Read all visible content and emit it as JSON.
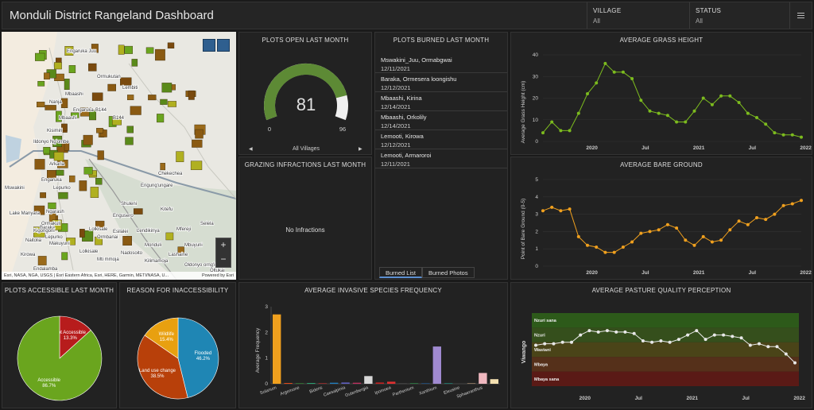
{
  "header": {
    "title": "Monduli District Rangeland Dashboard",
    "filters": [
      {
        "label": "VILLAGE",
        "value": "All"
      },
      {
        "label": "STATUS",
        "value": "All"
      }
    ]
  },
  "map": {
    "attribution": "Esri, NASA, NGA, USGS | Esri Eastern Africa, Esri, HERE, Garmin, METI/NASA, U...",
    "powered": "Powered by Esri",
    "zoom_in": "+",
    "zoom_out": "−",
    "labels": [
      "Engaruka Juu",
      "Ormukutan",
      "Lembiti",
      "Mbaashi",
      "Arkaria",
      "Engaruka",
      "Ildonyo Ng'ombe",
      "Kisimiri",
      "Lepurko",
      "Ngarash",
      "Engusero",
      "Chekechea",
      "Engung'ungare",
      "Shuleni",
      "Lendikinya",
      "Mfereji",
      "Mbuyuni",
      "Lashaine",
      "Mti mmoja",
      "Lolkisale",
      "Selela",
      "Makuyuni",
      "Losirwa",
      "Oldonyo orng'ina",
      "Oltukai",
      "Lepurko",
      "Mswakini",
      "Naitolia",
      "Ormakuli",
      "Kirowa",
      "Baraka",
      "Lake Manyara",
      "Kigongoni",
      "Esilalei",
      "Nanja",
      "Mbaashi",
      "Engaruka Chini",
      "Endalamba",
      "Mswakini Juu",
      "Ormbanai",
      "Kitefu",
      "Monduli",
      "Lolkisale",
      "Nadosoito",
      "Kilimamoja",
      "B144",
      "B144"
    ]
  },
  "plots_open": {
    "title": "PLOTS OPEN LAST MONTH",
    "value": "81",
    "min": "0",
    "max": "96",
    "fraction": 0.84375,
    "selector": "All Villages",
    "prev": "◀",
    "next": "▶"
  },
  "grazing": {
    "title": "GRAZING INFRACTIONS LAST MONTH",
    "message": "No Infractions"
  },
  "plots_burned": {
    "title": "PLOTS BURNED LAST MONTH",
    "items": [
      {
        "name": "Mswakini_Juu, Ormabgwai",
        "date": "12/11/2021"
      },
      {
        "name": "Baraka, Ormesera loongishu",
        "date": "12/12/2021"
      },
      {
        "name": "Mbaashi, Kirina",
        "date": "12/14/2021"
      },
      {
        "name": "Mbaashi, Orkolily",
        "date": "12/14/2021"
      },
      {
        "name": "Lemooti, Kirowa",
        "date": "12/12/2021"
      },
      {
        "name": "Lemooti, Armaroroi",
        "date": "12/11/2021"
      }
    ],
    "tabs": [
      "Burned List",
      "Burned Photos"
    ]
  },
  "accessible": {
    "title": "PLOTS ACCESSIBLE LAST MONTH",
    "slices": [
      {
        "label": "Not Accessible",
        "pct": "13.3%",
        "value": 13.3,
        "color": "#b71c1c"
      },
      {
        "label": "Accessible",
        "pct": "86.7%",
        "value": 86.7,
        "color": "#6aa51e"
      }
    ]
  },
  "reason": {
    "title": "REASON FOR INACCESSIBILITY",
    "slices": [
      {
        "label": "Flooded",
        "pct": "46.2%",
        "value": 46.2,
        "color": "#1f86b4"
      },
      {
        "label": "Land use change",
        "pct": "38.5%",
        "value": 38.5,
        "color": "#b8400a"
      },
      {
        "label": "Wildlife",
        "pct": "15.4%",
        "value": 15.4,
        "color": "#e8a010"
      }
    ]
  },
  "chart_data": [
    {
      "id": "grass",
      "type": "line",
      "title": "AVERAGE GRASS HEIGHT",
      "ylabel": "Average Grass Height (cm)",
      "ylim": [
        0,
        40
      ],
      "yticks": [
        0,
        10,
        20,
        30,
        40
      ],
      "color": "#7cbb1e",
      "xticks": [
        {
          "label": "2020",
          "t": 6
        },
        {
          "label": "Jul",
          "t": 12
        },
        {
          "label": "2021",
          "t": 18
        },
        {
          "label": "Jul",
          "t": 24
        },
        {
          "label": "2022",
          "t": 30
        }
      ],
      "values": [
        4,
        9,
        5,
        5,
        13,
        22,
        27,
        36,
        32,
        32,
        29,
        19,
        14,
        13,
        12,
        9,
        9,
        14,
        20,
        17,
        21,
        21,
        18,
        13,
        11,
        8,
        4,
        3,
        3,
        2
      ]
    },
    {
      "id": "bare",
      "type": "line",
      "title": "AVERAGE BARE GROUND",
      "ylabel": "Point of Bare Ground (0-5)",
      "ylim": [
        0,
        5
      ],
      "yticks": [
        0,
        1,
        2,
        3,
        4,
        5
      ],
      "color": "#f0a01e",
      "xticks": [
        {
          "label": "2020",
          "t": 6
        },
        {
          "label": "Jul",
          "t": 12
        },
        {
          "label": "2021",
          "t": 18
        },
        {
          "label": "Jul",
          "t": 24
        },
        {
          "label": "2022",
          "t": 30
        }
      ],
      "values": [
        3.2,
        3.4,
        3.2,
        3.3,
        1.7,
        1.2,
        1.1,
        0.8,
        0.8,
        1.1,
        1.4,
        1.9,
        2.0,
        2.1,
        2.4,
        2.2,
        1.5,
        1.2,
        1.7,
        1.4,
        1.5,
        2.1,
        2.6,
        2.4,
        2.8,
        2.7,
        3.0,
        3.5,
        3.6,
        3.8
      ]
    },
    {
      "id": "invasive",
      "type": "bar",
      "title": "AVERAGE INVASIVE SPECIES FREQUENCY",
      "ylabel": "Average Frequency",
      "ylim": [
        0,
        3
      ],
      "yticks": [
        0,
        1,
        2,
        3
      ],
      "categories": [
        "Solanum",
        "Argemone",
        "Bidens",
        "Caesalpinia",
        "Gutenbergia",
        "Ipomoea",
        "Parthenium",
        "Xanthium",
        "Eleusine",
        "Sphaeranthus"
      ],
      "bars": [
        {
          "v": 2.7,
          "c": "#f0a01e",
          "lbl": "Solanum"
        },
        {
          "v": 0.03,
          "c": "#e04a1a"
        },
        {
          "v": 0.02,
          "c": "#3a9a3a",
          "lbl": "Argemone"
        },
        {
          "v": 0.03,
          "c": "#2aa070"
        },
        {
          "v": 0.02,
          "c": "#d03030",
          "lbl": "Bidens"
        },
        {
          "v": 0.04,
          "c": "#2080c0"
        },
        {
          "v": 0.05,
          "c": "#6060c0",
          "lbl": "Caesalpinia"
        },
        {
          "v": 0.04,
          "c": "#c03060"
        },
        {
          "v": 0.3,
          "c": "#d8d8d8",
          "lbl": "Gutenbergia"
        },
        {
          "v": 0.05,
          "c": "#c02020"
        },
        {
          "v": 0.08,
          "c": "#e03030",
          "lbl": "Ipomoea"
        },
        {
          "v": 0.02,
          "c": "#505050"
        },
        {
          "v": 0.02,
          "c": "#30a050",
          "lbl": "Parthenium"
        },
        {
          "v": 0.02,
          "c": "#2060a0"
        },
        {
          "v": 1.45,
          "c": "#a08ad0",
          "lbl": "Xanthium"
        },
        {
          "v": 0.02,
          "c": "#20a090"
        },
        {
          "v": 0.02,
          "c": "#404040",
          "lbl": "Eleusine"
        },
        {
          "v": 0.02,
          "c": "#c0a080"
        },
        {
          "v": 0.42,
          "c": "#f0b8c0",
          "lbl": "Sphaeranthus"
        },
        {
          "v": 0.18,
          "c": "#f4e0b0"
        }
      ]
    },
    {
      "id": "pasture",
      "type": "line",
      "title": "AVERAGE PASTURE QUALITY PERCEPTION",
      "ylabel": "Viwango",
      "ylim": [
        0,
        5
      ],
      "color": "#e8e8e8",
      "bands": [
        {
          "label": "Nzuri sana",
          "color": "#2d5a1a"
        },
        {
          "label": "Nzuri",
          "color": "#354f1c"
        },
        {
          "label": "Wastani",
          "color": "#4a4418"
        },
        {
          "label": "Mbaya",
          "color": "#55301a"
        },
        {
          "label": "Mbaya sana",
          "color": "#5a1a16"
        }
      ],
      "xticks": [
        {
          "label": "2020",
          "t": 6
        },
        {
          "label": "Jul",
          "t": 12
        },
        {
          "label": "2021",
          "t": 18
        },
        {
          "label": "Jul",
          "t": 24
        },
        {
          "label": "2022",
          "t": 30
        }
      ],
      "values": [
        2.8,
        2.9,
        2.9,
        3.0,
        3.0,
        3.5,
        3.8,
        3.7,
        3.8,
        3.7,
        3.7,
        3.6,
        3.1,
        3.0,
        3.1,
        3.0,
        3.2,
        3.5,
        3.8,
        3.2,
        3.5,
        3.5,
        3.4,
        3.3,
        2.8,
        2.9,
        2.7,
        2.7,
        2.2,
        1.6
      ]
    }
  ]
}
